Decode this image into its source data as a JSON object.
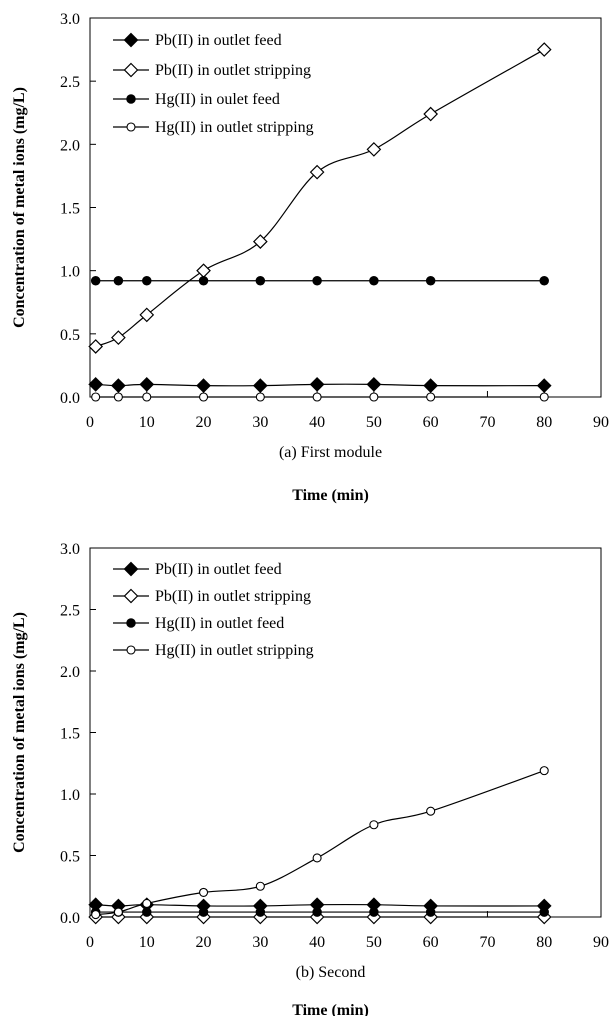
{
  "chart_data": [
    {
      "type": "line",
      "subtitle": "(a) First module",
      "xlabel": "Time (min)",
      "ylabel": "Concentration of metal ions (mg/L)",
      "xlim": [
        0,
        90
      ],
      "ylim": [
        0,
        3.0
      ],
      "xticks": [
        "0",
        "10",
        "20",
        "30",
        "40",
        "50",
        "60",
        "70",
        "80",
        "90"
      ],
      "yticks": [
        "0.0",
        "0.5",
        "1.0",
        "1.5",
        "2.0",
        "2.5",
        "3.0"
      ],
      "grid": false,
      "legend_position": "top-left",
      "series": [
        {
          "name": "Pb(II) in outlet feed",
          "marker": "filled-diamond",
          "x": [
            1,
            5,
            10,
            20,
            30,
            40,
            50,
            60,
            80
          ],
          "y": [
            0.1,
            0.09,
            0.1,
            0.09,
            0.09,
            0.1,
            0.1,
            0.09,
            0.09
          ]
        },
        {
          "name": "Pb(II) in outlet stripping",
          "marker": "open-diamond",
          "x": [
            1,
            5,
            10,
            20,
            30,
            40,
            50,
            60,
            80
          ],
          "y": [
            0.4,
            0.47,
            0.65,
            1.0,
            1.23,
            1.78,
            1.96,
            2.24,
            2.75
          ]
        },
        {
          "name": "Hg(II) in oulet feed",
          "marker": "filled-circle",
          "x": [
            1,
            5,
            10,
            20,
            30,
            40,
            50,
            60,
            80
          ],
          "y": [
            0.92,
            0.92,
            0.92,
            0.92,
            0.92,
            0.92,
            0.92,
            0.92,
            0.92
          ]
        },
        {
          "name": "Hg(II) in outlet stripping",
          "marker": "open-circle",
          "x": [
            1,
            5,
            10,
            20,
            30,
            40,
            50,
            60,
            80
          ],
          "y": [
            0.0,
            0.0,
            0.0,
            0.0,
            0.0,
            0.0,
            0.0,
            0.0,
            0.0
          ]
        }
      ]
    },
    {
      "type": "line",
      "subtitle": "(b) Second",
      "xlabel": "Time (min)",
      "ylabel": "Concentration of metal ions (mg/L)",
      "xlim": [
        0,
        90
      ],
      "ylim": [
        0,
        3.0
      ],
      "xticks": [
        "0",
        "10",
        "20",
        "30",
        "40",
        "50",
        "60",
        "70",
        "80",
        "90"
      ],
      "yticks": [
        "0.0",
        "0.5",
        "1.0",
        "1.5",
        "2.0",
        "2.5",
        "3.0"
      ],
      "grid": false,
      "legend_position": "top-left",
      "series": [
        {
          "name": "Pb(II) in outlet feed",
          "marker": "filled-diamond",
          "x": [
            1,
            5,
            10,
            20,
            30,
            40,
            50,
            60,
            80
          ],
          "y": [
            0.1,
            0.09,
            0.1,
            0.09,
            0.09,
            0.1,
            0.1,
            0.09,
            0.09
          ]
        },
        {
          "name": "Pb(II) in outlet stripping",
          "marker": "open-diamond",
          "x": [
            1,
            5,
            10,
            20,
            30,
            40,
            50,
            60,
            80
          ],
          "y": [
            0.0,
            0.0,
            0.0,
            0.0,
            0.0,
            0.0,
            0.0,
            0.0,
            0.0
          ]
        },
        {
          "name": "Hg(II) in outlet feed",
          "marker": "filled-circle",
          "x": [
            1,
            5,
            10,
            20,
            30,
            40,
            50,
            60,
            80
          ],
          "y": [
            0.04,
            0.04,
            0.04,
            0.04,
            0.04,
            0.04,
            0.04,
            0.04,
            0.04
          ]
        },
        {
          "name": "Hg(II) in outlet stripping",
          "marker": "open-circle",
          "x": [
            1,
            5,
            10,
            20,
            30,
            40,
            50,
            60,
            80
          ],
          "y": [
            0.02,
            0.04,
            0.11,
            0.2,
            0.25,
            0.48,
            0.75,
            0.86,
            1.19
          ]
        }
      ]
    }
  ]
}
